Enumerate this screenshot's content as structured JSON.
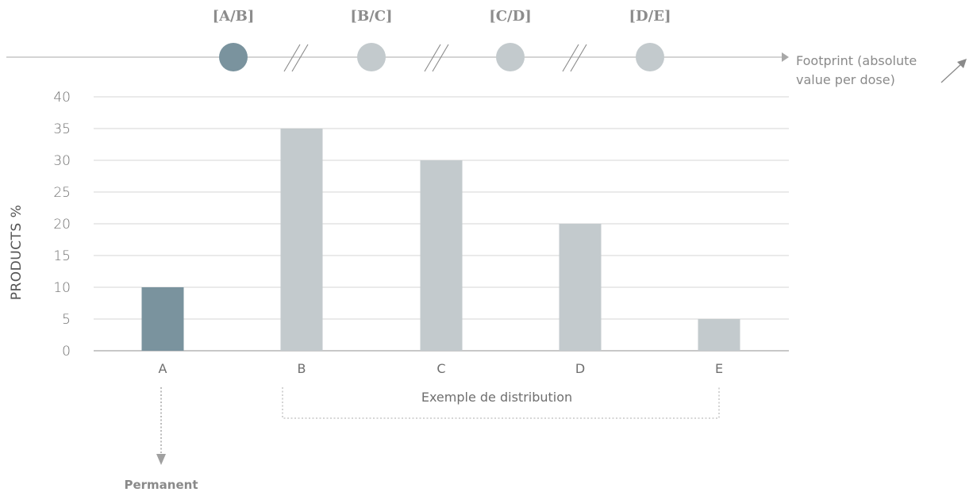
{
  "chart_data": {
    "type": "bar",
    "categories": [
      "A",
      "B",
      "C",
      "D",
      "E"
    ],
    "values": [
      10,
      35,
      30,
      20,
      5
    ],
    "highlight_index": 0,
    "ylabel": "PRODUCTS %",
    "ylim": [
      0,
      40
    ],
    "yticks": [
      0,
      5,
      10,
      15,
      20,
      25,
      30,
      35,
      40
    ],
    "grid": true,
    "colors": {
      "highlight": "#7a939e",
      "bar": "#c3cacd",
      "grid": "#d4d4d4",
      "axis_line": "#a8a8a8",
      "marker_active": "#7a939e",
      "marker_inactive": "#c3cacd"
    },
    "top_axis": {
      "label_line1": "Footprint (absolute",
      "label_line2": "value per dose)",
      "boundaries": [
        "[A/B]",
        "[B/C]",
        "[C/D]",
        "[D/E]"
      ],
      "active_index": 0
    },
    "annotations": {
      "distribution_label": "Exemple de distribution",
      "permanent_label": "Permanent"
    }
  }
}
